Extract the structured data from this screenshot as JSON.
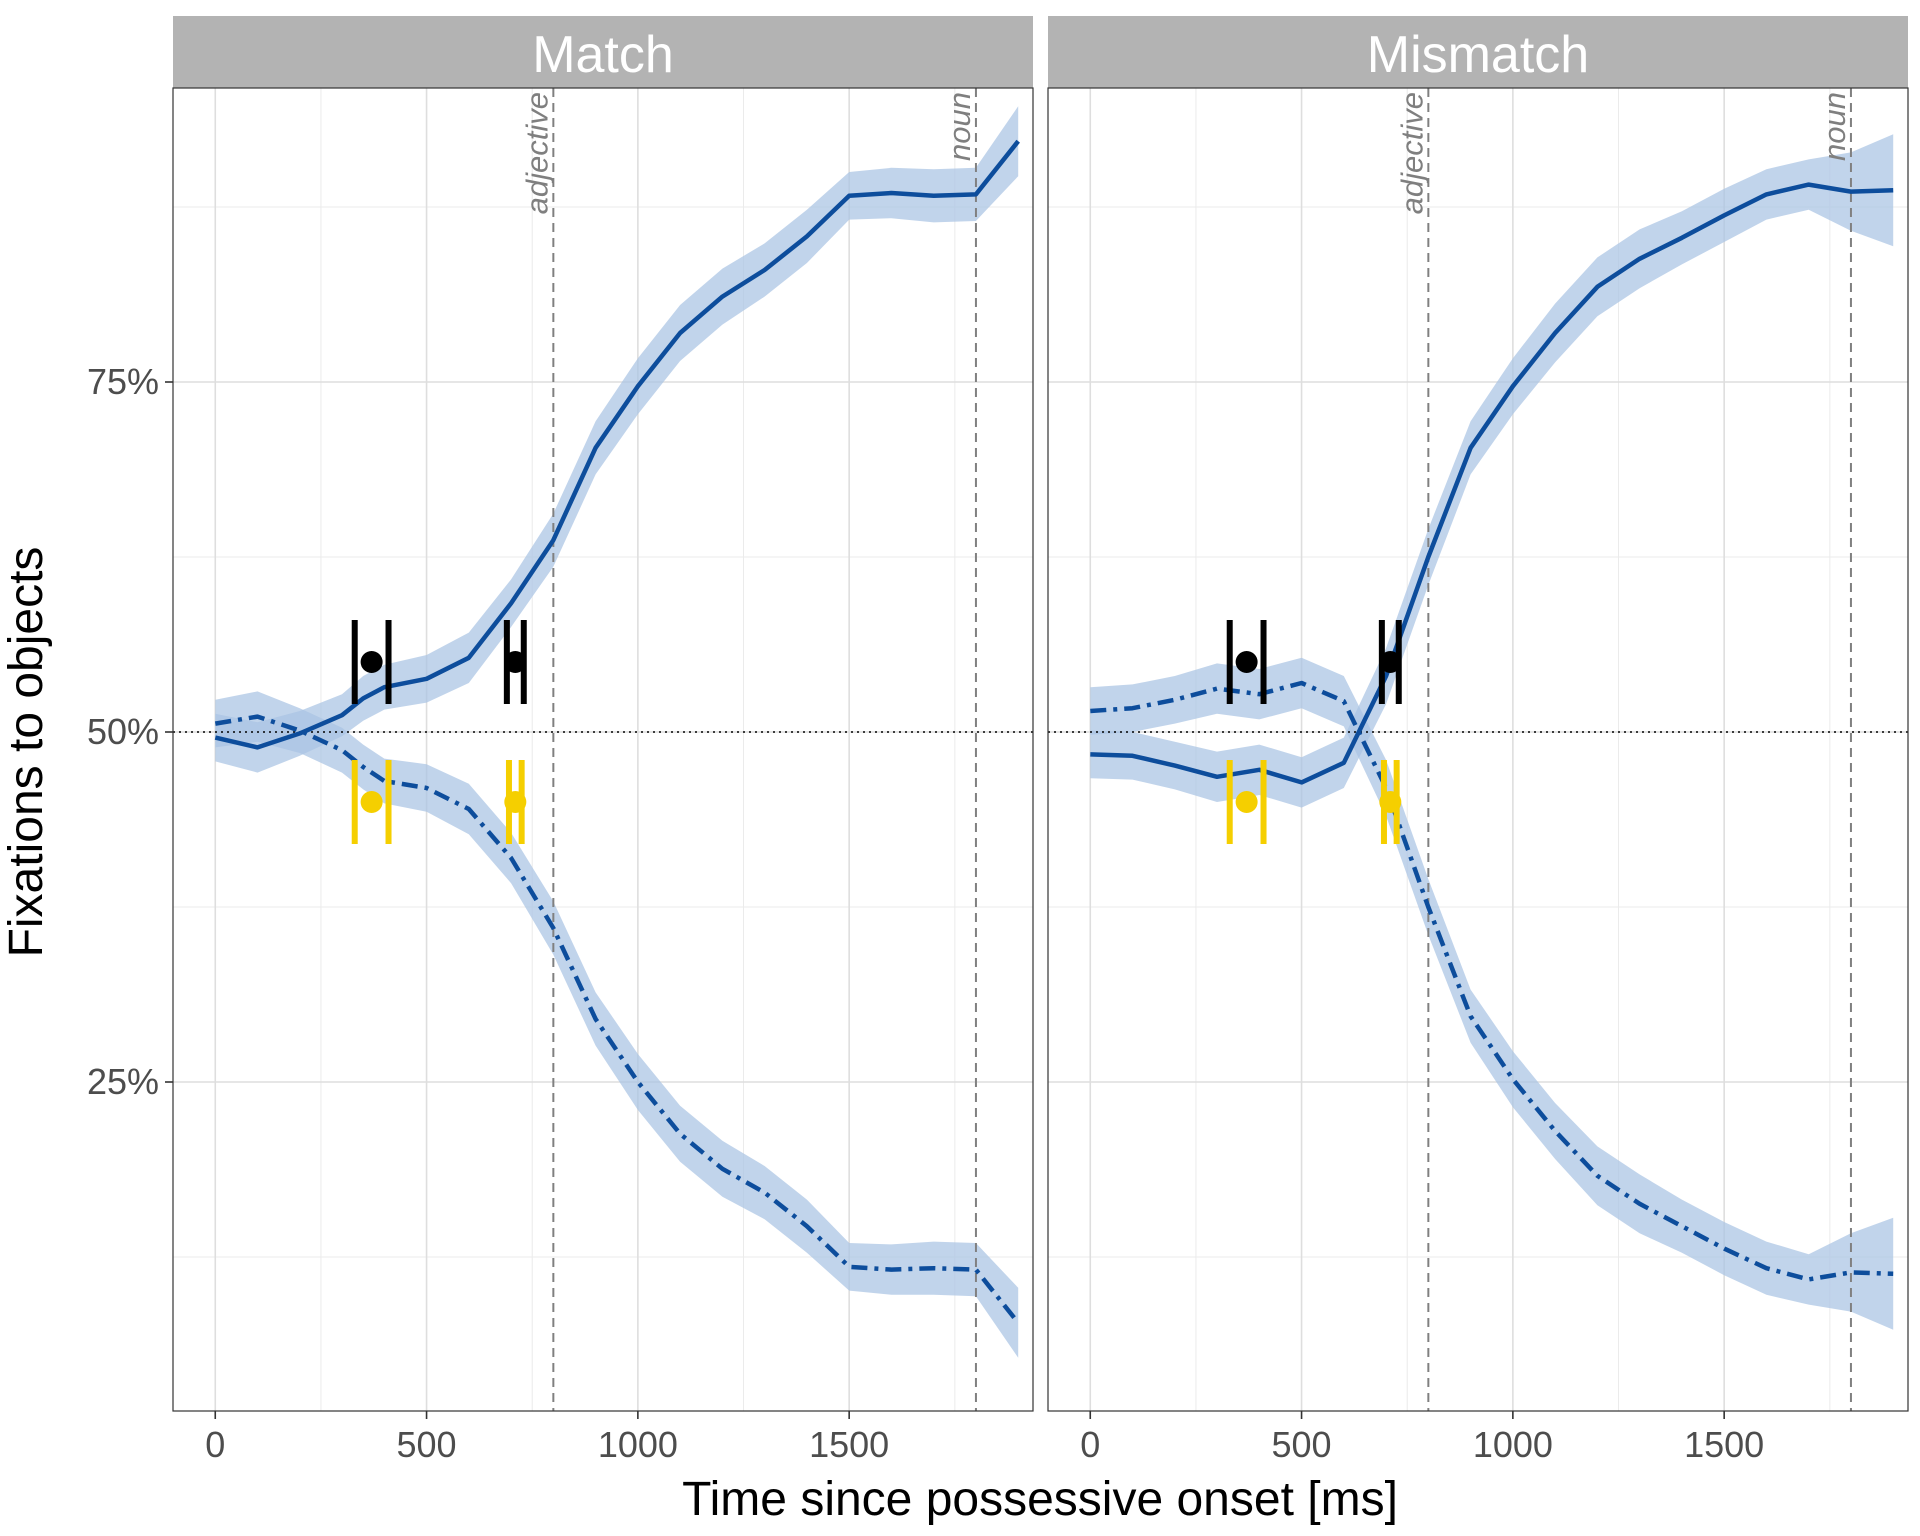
{
  "chart_data": {
    "type": "line",
    "xlabel": "Time since possessive onset [ms]",
    "ylabel": "Fixations to objects",
    "xlim": [
      -100,
      1935
    ],
    "ylim": [
      0.015,
      0.96
    ],
    "x_ticks": [
      0,
      500,
      1000,
      1500
    ],
    "y_ticks": [
      0.25,
      0.5,
      0.75
    ],
    "y_tick_labels": [
      "25%",
      "50%",
      "75%"
    ],
    "grid": true,
    "reference_line": 0.5,
    "colors": {
      "line": "#0d4d9c",
      "ribbon": "#a9c3e3",
      "strip": "#b3b3b3",
      "black_marker": "#000000",
      "yellow_marker": "#f5cf00"
    },
    "vertical_markers": [
      {
        "x": 800,
        "label": "adjective"
      },
      {
        "x": 1800,
        "label": "noun"
      }
    ],
    "panels": [
      {
        "title": "Match",
        "series": [
          {
            "style": "solid",
            "x": [
              0,
              100,
              200,
              300,
              350,
              400,
              500,
              600,
              700,
              800,
              900,
              1000,
              1100,
              1200,
              1300,
              1400,
              1500,
              1600,
              1700,
              1800,
              1900
            ],
            "values": [
              0.496,
              0.489,
              0.499,
              0.512,
              0.524,
              0.532,
              0.538,
              0.553,
              0.592,
              0.637,
              0.703,
              0.747,
              0.785,
              0.811,
              0.83,
              0.854,
              0.883,
              0.885,
              0.883,
              0.884,
              0.922
            ],
            "lower": [
              0.479,
              0.471,
              0.483,
              0.497,
              0.508,
              0.516,
              0.521,
              0.535,
              0.575,
              0.618,
              0.684,
              0.727,
              0.765,
              0.791,
              0.811,
              0.835,
              0.866,
              0.867,
              0.864,
              0.865,
              0.897
            ],
            "upper": [
              0.513,
              0.507,
              0.515,
              0.527,
              0.54,
              0.548,
              0.555,
              0.571,
              0.609,
              0.656,
              0.722,
              0.767,
              0.805,
              0.831,
              0.849,
              0.873,
              0.9,
              0.903,
              0.902,
              0.903,
              0.947
            ]
          },
          {
            "style": "dotdash",
            "x": [
              0,
              100,
              200,
              300,
              350,
              400,
              500,
              600,
              700,
              800,
              900,
              1000,
              1100,
              1200,
              1300,
              1400,
              1500,
              1600,
              1700,
              1800,
              1900
            ],
            "values": [
              0.506,
              0.511,
              0.501,
              0.487,
              0.475,
              0.465,
              0.46,
              0.445,
              0.41,
              0.36,
              0.295,
              0.25,
              0.213,
              0.188,
              0.171,
              0.147,
              0.118,
              0.116,
              0.117,
              0.116,
              0.078
            ],
            "lower": [
              0.489,
              0.493,
              0.485,
              0.471,
              0.459,
              0.449,
              0.443,
              0.427,
              0.392,
              0.341,
              0.276,
              0.23,
              0.193,
              0.168,
              0.152,
              0.128,
              0.101,
              0.098,
              0.098,
              0.097,
              0.053
            ],
            "upper": [
              0.523,
              0.529,
              0.517,
              0.503,
              0.491,
              0.481,
              0.477,
              0.463,
              0.428,
              0.379,
              0.314,
              0.27,
              0.233,
              0.208,
              0.19,
              0.166,
              0.135,
              0.134,
              0.136,
              0.135,
              0.103
            ]
          }
        ],
        "markers": [
          {
            "color": "black",
            "x": 370,
            "y": 0.55,
            "xmin": 330,
            "xmax": 410
          },
          {
            "color": "black",
            "x": 710,
            "y": 0.55,
            "xmin": 690,
            "xmax": 730
          },
          {
            "color": "yellow",
            "x": 370,
            "y": 0.45,
            "xmin": 330,
            "xmax": 410
          },
          {
            "color": "yellow",
            "x": 710,
            "y": 0.45,
            "xmin": 695,
            "xmax": 725
          }
        ]
      },
      {
        "title": "Mismatch",
        "series": [
          {
            "style": "solid",
            "x": [
              0,
              100,
              200,
              300,
              400,
              500,
              600,
              700,
              800,
              900,
              1000,
              1100,
              1200,
              1300,
              1400,
              1500,
              1600,
              1700,
              1800,
              1900
            ],
            "values": [
              0.484,
              0.483,
              0.476,
              0.468,
              0.473,
              0.464,
              0.478,
              0.54,
              0.625,
              0.703,
              0.747,
              0.785,
              0.818,
              0.838,
              0.853,
              0.869,
              0.884,
              0.891,
              0.886,
              0.887
            ],
            "lower": [
              0.467,
              0.466,
              0.459,
              0.45,
              0.455,
              0.446,
              0.46,
              0.52,
              0.605,
              0.684,
              0.727,
              0.764,
              0.797,
              0.817,
              0.834,
              0.85,
              0.866,
              0.873,
              0.858,
              0.847
            ],
            "upper": [
              0.501,
              0.5,
              0.493,
              0.486,
              0.491,
              0.482,
              0.496,
              0.56,
              0.645,
              0.722,
              0.767,
              0.806,
              0.839,
              0.859,
              0.872,
              0.888,
              0.902,
              0.909,
              0.914,
              0.927
            ]
          },
          {
            "style": "dotdash",
            "x": [
              0,
              100,
              200,
              300,
              400,
              500,
              600,
              700,
              800,
              900,
              1000,
              1100,
              1200,
              1300,
              1400,
              1500,
              1600,
              1700,
              1800,
              1900
            ],
            "values": [
              0.515,
              0.517,
              0.523,
              0.531,
              0.527,
              0.535,
              0.522,
              0.46,
              0.375,
              0.297,
              0.252,
              0.215,
              0.183,
              0.163,
              0.147,
              0.131,
              0.117,
              0.109,
              0.114,
              0.113
            ],
            "lower": [
              0.498,
              0.5,
              0.506,
              0.513,
              0.509,
              0.517,
              0.504,
              0.44,
              0.355,
              0.278,
              0.232,
              0.195,
              0.162,
              0.142,
              0.128,
              0.112,
              0.098,
              0.091,
              0.086,
              0.073
            ],
            "upper": [
              0.532,
              0.534,
              0.54,
              0.549,
              0.545,
              0.553,
              0.54,
              0.48,
              0.395,
              0.316,
              0.272,
              0.235,
              0.204,
              0.184,
              0.166,
              0.15,
              0.136,
              0.127,
              0.142,
              0.153
            ]
          }
        ],
        "markers": [
          {
            "color": "black",
            "x": 370,
            "y": 0.55,
            "xmin": 330,
            "xmax": 410
          },
          {
            "color": "black",
            "x": 710,
            "y": 0.55,
            "xmin": 690,
            "xmax": 730
          },
          {
            "color": "yellow",
            "x": 370,
            "y": 0.45,
            "xmin": 330,
            "xmax": 410
          },
          {
            "color": "yellow",
            "x": 710,
            "y": 0.45,
            "xmin": 695,
            "xmax": 725
          }
        ]
      }
    ]
  }
}
